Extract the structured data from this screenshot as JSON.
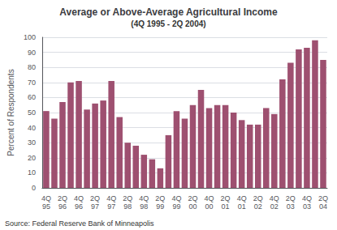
{
  "chart_data": {
    "type": "bar",
    "title": "Average or Above-Average Agricultural Income",
    "subtitle": "(4Q 1995 - 2Q 2004)",
    "ylabel": "Percent of Respondents",
    "annotations": [
      "Source: Federal Reserve Bank of Minneapolis"
    ],
    "categories": [
      "4Q\n95",
      null,
      "2Q\n96",
      null,
      "4Q\n96",
      null,
      "2Q\n97",
      null,
      "4Q\n97",
      null,
      "2Q\n98",
      null,
      "4Q\n98",
      null,
      "2Q\n99",
      null,
      "4Q\n99",
      null,
      "2Q\n00",
      null,
      "4Q\n00",
      null,
      "2Q\n01",
      null,
      "4Q\n01",
      null,
      "2Q\n02",
      null,
      "4Q\n02",
      null,
      "2Q\n03",
      null,
      "4Q\n03",
      null,
      "2Q\n04"
    ],
    "values": [
      51,
      46,
      57,
      70,
      71,
      52,
      56,
      58,
      71,
      47,
      30,
      28,
      22,
      19,
      13,
      35,
      51,
      46,
      55,
      65,
      53,
      55,
      55,
      50,
      45,
      42,
      42,
      53,
      49,
      72,
      83,
      92,
      93,
      98,
      85
    ],
    "color": "#9e5070",
    "ylim": [
      0,
      100
    ],
    "yticks": [
      0,
      10,
      20,
      30,
      40,
      50,
      60,
      70,
      80,
      90,
      100
    ],
    "grid": true
  }
}
